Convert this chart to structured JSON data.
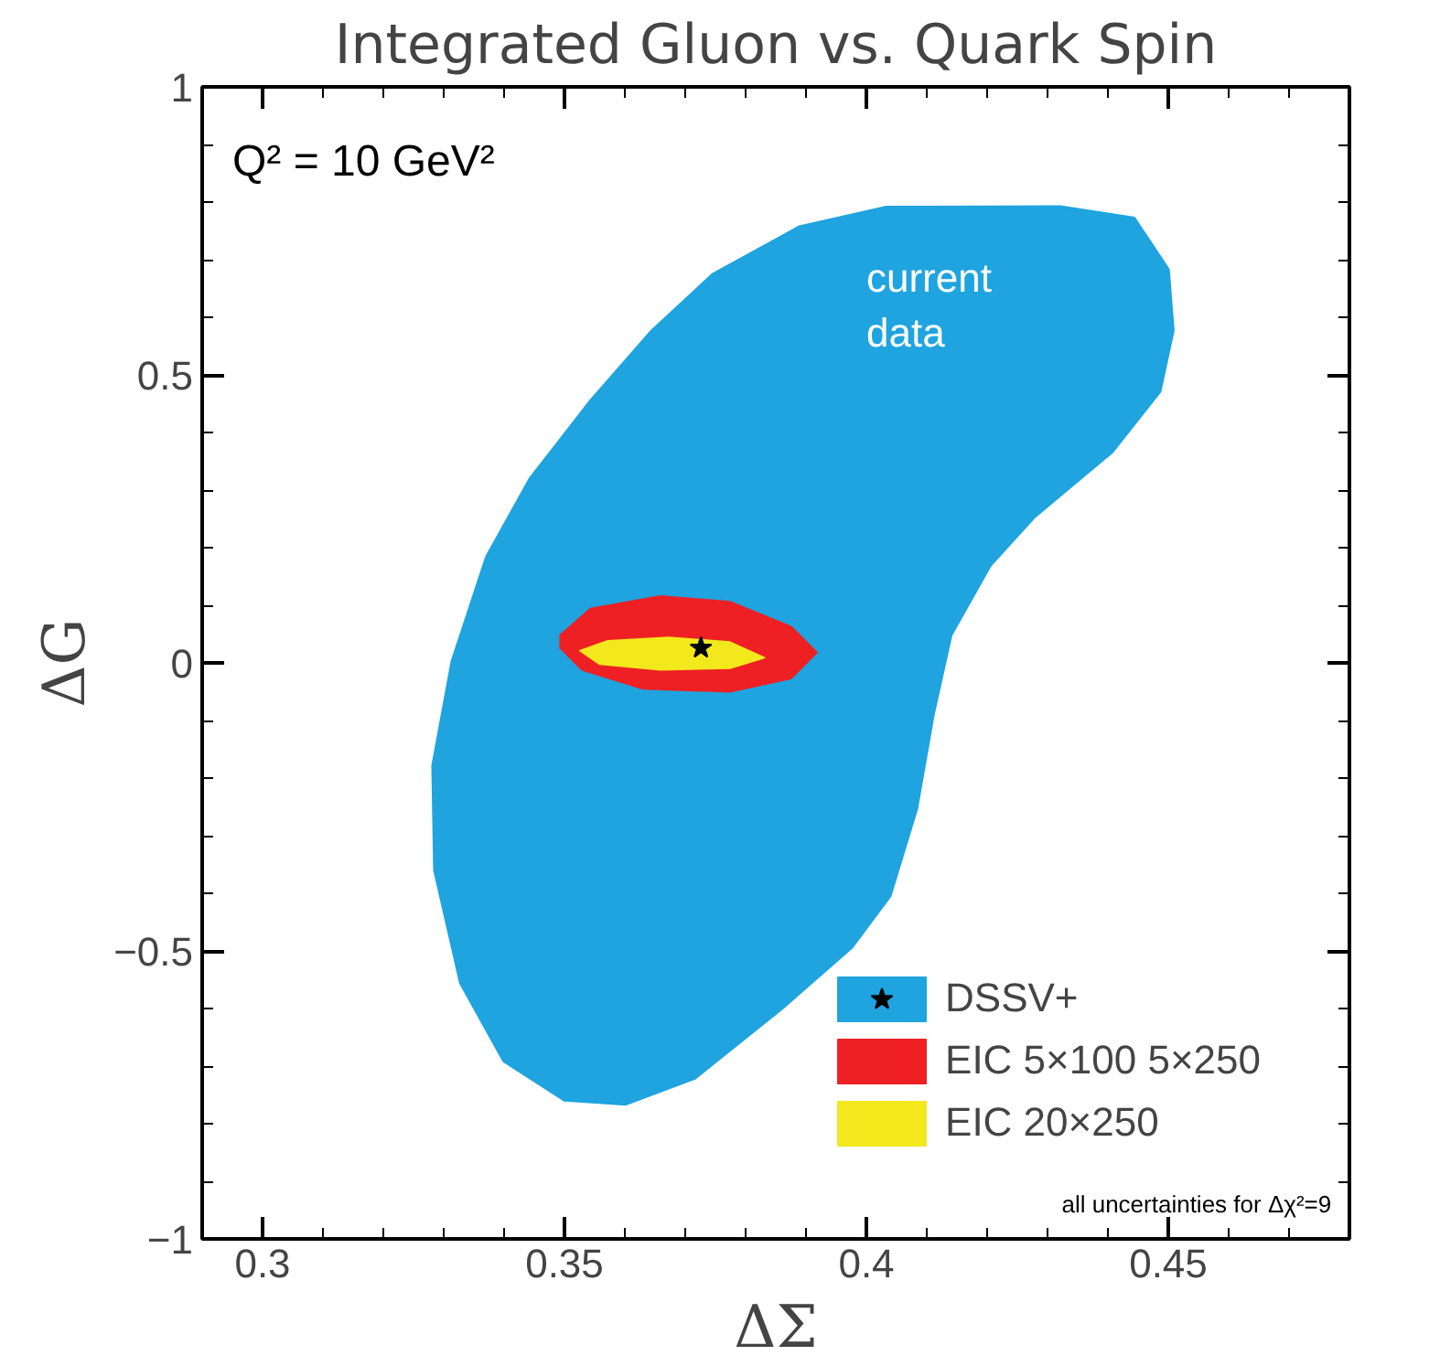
{
  "chart_data": {
    "type": "area",
    "title": "Integrated Gluon vs. Quark Spin",
    "xlabel": "ΔΣ",
    "ylabel": "ΔG",
    "xlim": [
      0.29,
      0.48
    ],
    "xticks": [
      0.3,
      0.35,
      0.4,
      0.45
    ],
    "ylim": [
      -1,
      1
    ],
    "yticks": [
      -1,
      -0.5,
      0,
      0.5,
      1
    ],
    "grid": false,
    "legend": "bottom right",
    "annotations": [
      "Q² = 10 GeV²",
      "current\ndata",
      "all uncertainties for Δχ²=9"
    ],
    "series": [
      {
        "name": "DSSV+",
        "color": "#1fa4df",
        "x": [
          0.3745,
          0.3889,
          0.4033,
          0.4321,
          0.4444,
          0.4501,
          0.4509,
          0.4487,
          0.4408,
          0.4278,
          0.4206,
          0.4141,
          0.4112,
          0.4084,
          0.404,
          0.3976,
          0.386,
          0.3716,
          0.3601,
          0.35,
          0.3399,
          0.3327,
          0.3284,
          0.3281,
          0.3313,
          0.337,
          0.3442,
          0.3543,
          0.3644
        ],
        "values": [
          0.675,
          0.758,
          0.792,
          0.793,
          0.773,
          0.683,
          0.577,
          0.471,
          0.366,
          0.252,
          0.169,
          0.048,
          -0.088,
          -0.254,
          -0.405,
          -0.495,
          -0.601,
          -0.722,
          -0.767,
          -0.76,
          -0.692,
          -0.556,
          -0.36,
          -0.178,
          0.003,
          0.184,
          0.32,
          0.456,
          0.577
        ]
      },
      {
        "name": "EIC 5×100 5×250",
        "color": "#ee2024",
        "x": [
          0.3493,
          0.3543,
          0.3659,
          0.3774,
          0.3875,
          0.3918,
          0.3875,
          0.3774,
          0.363,
          0.3529,
          0.3493
        ],
        "values": [
          0.048,
          0.094,
          0.116,
          0.106,
          0.063,
          0.018,
          -0.027,
          -0.05,
          -0.045,
          -0.012,
          0.026
        ]
      },
      {
        "name": "EIC 20×250",
        "color": "#f2e81c",
        "x": [
          0.3526,
          0.3572,
          0.3673,
          0.3774,
          0.3831,
          0.3774,
          0.3659,
          0.3558
        ],
        "values": [
          0.021,
          0.038,
          0.044,
          0.036,
          0.009,
          -0.009,
          -0.012,
          -0.002
        ]
      },
      {
        "type": "scatter",
        "marker": "star",
        "color": "#000000",
        "x": [
          0.3726
        ],
        "values": [
          0.026
        ]
      }
    ]
  }
}
